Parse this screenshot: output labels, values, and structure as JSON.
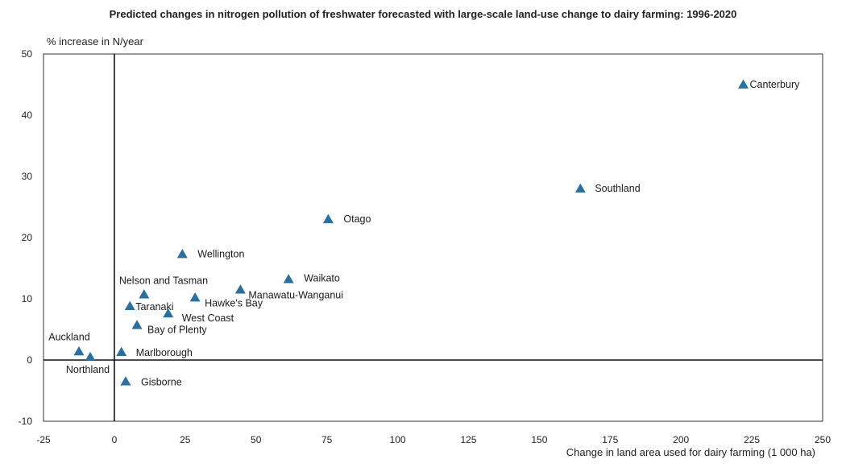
{
  "chart_data": {
    "type": "scatter",
    "title": "Predicted changes in nitrogen pollution of freshwater forecasted with large-scale land-use change to dairy farming: 1996-2020",
    "ylabel": "% increase in N/year",
    "xlabel": "Change in land area used for dairy farming (1 000 ha)",
    "xlim": [
      -25,
      250
    ],
    "ylim": [
      -10,
      50
    ],
    "x_ticks": [
      "-25",
      "0",
      "25",
      "50",
      "75",
      "100",
      "125",
      "150",
      "175",
      "200",
      "225",
      "250"
    ],
    "y_ticks": [
      "-10",
      "0",
      "10",
      "20",
      "30",
      "40",
      "50"
    ],
    "grid": false,
    "marker": "triangle",
    "color": "#2a6f9e",
    "points": [
      {
        "label": "Canterbury",
        "x": 222,
        "y": 45
      },
      {
        "label": "Southland",
        "x": 164.5,
        "y": 28
      },
      {
        "label": "Otago",
        "x": 75.5,
        "y": 23
      },
      {
        "label": "Wellington",
        "x": 24,
        "y": 17.3
      },
      {
        "label": "Waikato",
        "x": 61.5,
        "y": 13.2
      },
      {
        "label": "Manawatu-Wanganui",
        "x": 44.5,
        "y": 11.5
      },
      {
        "label": "Nelson and Tasman",
        "x": 10.5,
        "y": 10.7
      },
      {
        "label": "Hawke's Bay",
        "x": 28.5,
        "y": 10.2
      },
      {
        "label": "Taranaki",
        "x": 5.5,
        "y": 8.8
      },
      {
        "label": "West Coast",
        "x": 19,
        "y": 7.6
      },
      {
        "label": "Bay of Plenty",
        "x": 8,
        "y": 5.7
      },
      {
        "label": "Marlborough",
        "x": 2.5,
        "y": 1.3
      },
      {
        "label": "Auckland",
        "x": -12.5,
        "y": 1.4
      },
      {
        "label": "Northland",
        "x": -8.5,
        "y": 0.5
      },
      {
        "label": "Gisborne",
        "x": 4,
        "y": -3.5
      }
    ]
  }
}
